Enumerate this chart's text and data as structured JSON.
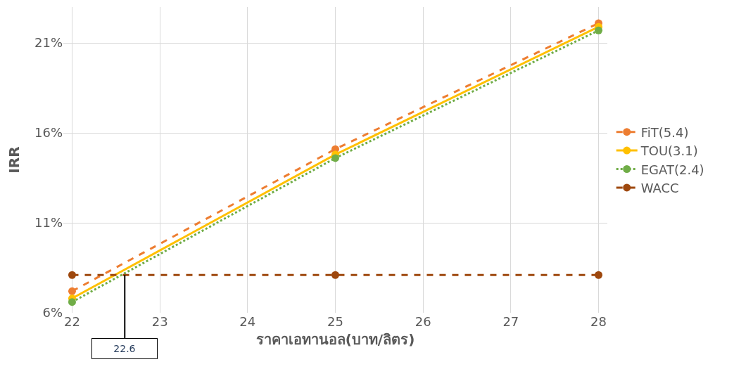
{
  "chart_data": {
    "type": "line",
    "xlabel": "ราคาเอทานอล(บาท/ลิตร)",
    "ylabel": "IRR",
    "x": [
      22,
      25,
      28
    ],
    "series": [
      {
        "name": "FiT(5.4)",
        "color": "#ed7d31",
        "values": [
          7.2,
          15.1,
          22.1
        ],
        "line_style": "dashed"
      },
      {
        "name": "TOU(3.1)",
        "color": "#ffc000",
        "values": [
          6.8,
          14.8,
          21.9
        ],
        "line_style": "solid"
      },
      {
        "name": "EGAT(2.4)",
        "color": "#70ad47",
        "values": [
          6.6,
          14.6,
          21.7
        ],
        "line_style": "dotted"
      },
      {
        "name": "WACC",
        "color": "#9e480e",
        "values": [
          8.1,
          8.1,
          8.1
        ],
        "line_style": "dashed"
      }
    ],
    "xlim": [
      21.9,
      28.1
    ],
    "xticks": [
      22,
      23,
      24,
      25,
      26,
      27,
      28
    ],
    "ylim": [
      6,
      23
    ],
    "yticks": [
      {
        "value": 6,
        "label": "6%"
      },
      {
        "value": 11,
        "label": "11%"
      },
      {
        "value": 16,
        "label": "16%"
      },
      {
        "value": 21,
        "label": "21%"
      }
    ],
    "annotations": [
      {
        "text": "22.6",
        "x": 22.6,
        "y": 8.1
      }
    ],
    "grid": true,
    "legend": "right",
    "marker": "circle"
  }
}
